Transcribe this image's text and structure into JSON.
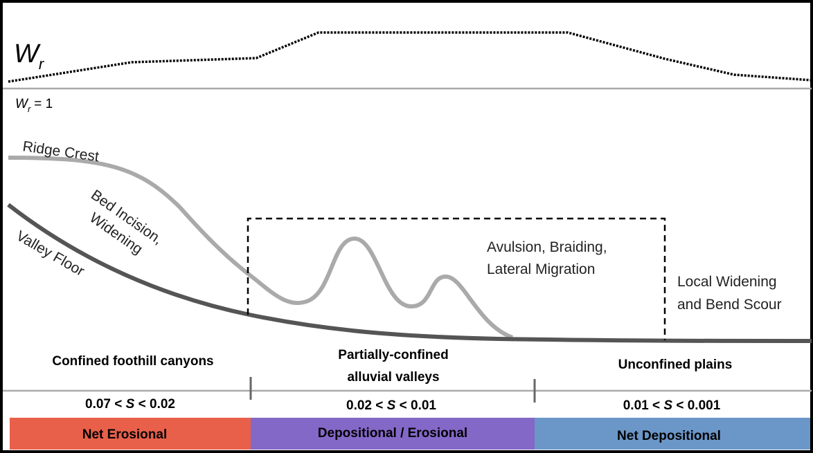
{
  "wr_label": {
    "symbol": "W",
    "subscript": "r"
  },
  "wr_baseline": {
    "symbol": "W",
    "subscript": "r",
    "suffix": "= 1"
  },
  "ridge_crest": "Ridge Crest",
  "bed_incision": [
    "Bed Incision,",
    "Widening"
  ],
  "valley_floor": "Valley Floor",
  "avulsion": [
    "Avulsion, Braiding,",
    "Lateral Migration"
  ],
  "local_widening": [
    "Local Widening",
    "and Bend Scour"
  ],
  "zones": [
    {
      "title": [
        "Confined foothill canyons"
      ],
      "slope": {
        "prefix": "0.07 <",
        "var": "S",
        "suffix": "< 0.02"
      },
      "process": "Net Erosional"
    },
    {
      "title": [
        "Partially-confined",
        "alluvial valleys"
      ],
      "slope": {
        "prefix": "0.02 <",
        "var": "S",
        "suffix": "< 0.01"
      },
      "process": "Depositional / Erosional"
    },
    {
      "title": [
        "Unconfined plains"
      ],
      "slope": {
        "prefix": "0.01 <",
        "var": "S",
        "suffix": "< 0.001"
      },
      "process": "Net Depositional"
    }
  ]
}
